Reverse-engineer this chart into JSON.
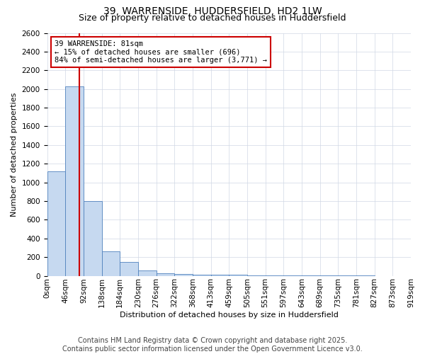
{
  "title1": "39, WARRENSIDE, HUDDERSFIELD, HD2 1LW",
  "title2": "Size of property relative to detached houses in Huddersfield",
  "xlabel": "Distribution of detached houses by size in Huddersfield",
  "ylabel": "Number of detached properties",
  "annotation_title": "39 WARRENSIDE: 81sqm",
  "annotation_line1": "← 15% of detached houses are smaller (696)",
  "annotation_line2": "84% of semi-detached houses are larger (3,771) →",
  "footer1": "Contains HM Land Registry data © Crown copyright and database right 2025.",
  "footer2": "Contains public sector information licensed under the Open Government Licence v3.0.",
  "bar_values": [
    1120,
    2030,
    800,
    265,
    145,
    55,
    30,
    20,
    15,
    10,
    8,
    5,
    4,
    3,
    2,
    1,
    1,
    1,
    0,
    0
  ],
  "categories": [
    "0sqm",
    "46sqm",
    "92sqm",
    "138sqm",
    "184sqm",
    "230sqm",
    "276sqm",
    "322sqm",
    "368sqm",
    "413sqm",
    "459sqm",
    "505sqm",
    "551sqm",
    "597sqm",
    "643sqm",
    "689sqm",
    "735sqm",
    "781sqm",
    "827sqm",
    "873sqm",
    "919sqm"
  ],
  "bar_color": "#c6d9f0",
  "bar_edge_color": "#4f81bd",
  "marker_line_color": "#cc0000",
  "annotation_box_color": "#cc0000",
  "background_color": "#ffffff",
  "grid_color": "#d0d8e4",
  "ylim": [
    0,
    2600
  ],
  "yticks": [
    0,
    200,
    400,
    600,
    800,
    1000,
    1200,
    1400,
    1600,
    1800,
    2000,
    2200,
    2400,
    2600
  ],
  "title_fontsize": 10,
  "subtitle_fontsize": 9,
  "axis_label_fontsize": 8,
  "tick_fontsize": 7.5,
  "footer_fontsize": 7
}
